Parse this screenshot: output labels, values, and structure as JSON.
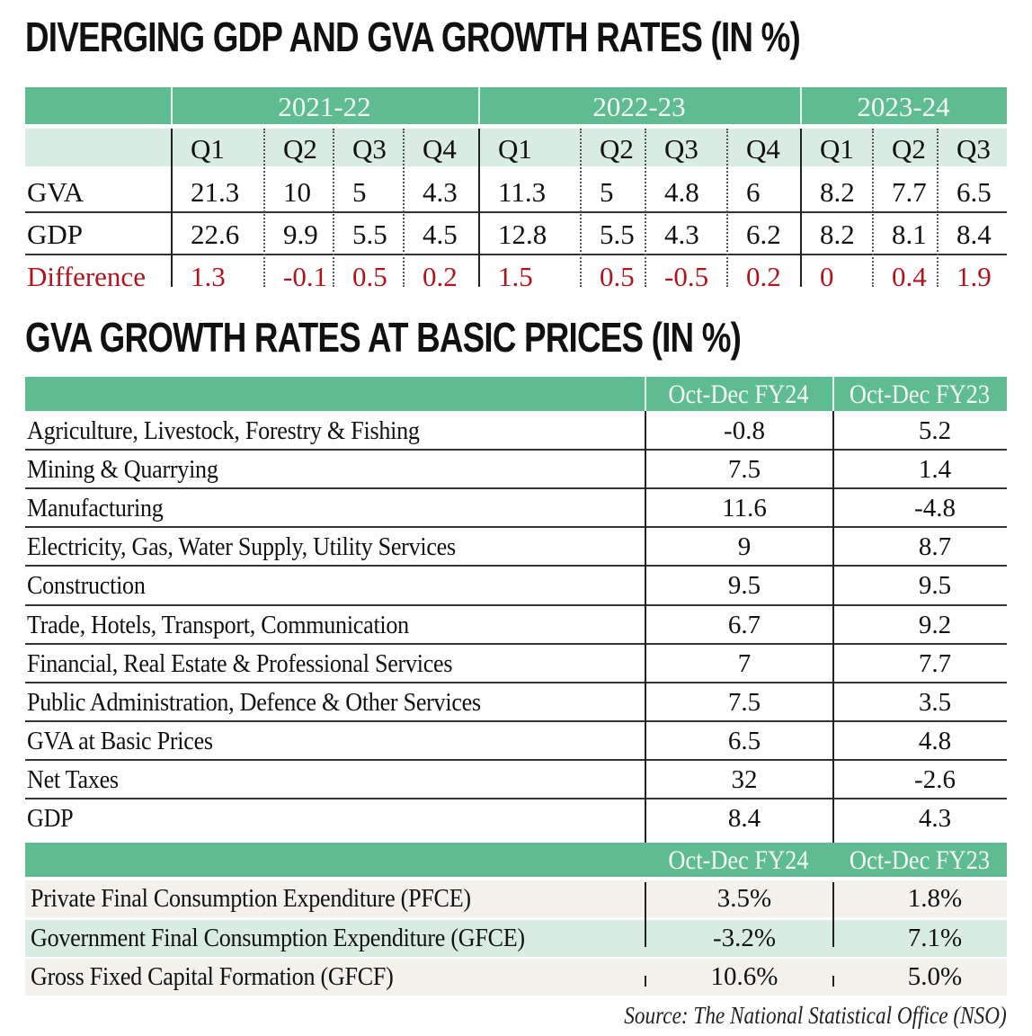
{
  "chart_data": [
    {
      "type": "table",
      "title": "DIVERGING GDP  AND GVA GROWTH RATES (IN %)",
      "column_groups": [
        {
          "label": "2021-22",
          "quarters": [
            "Q1",
            "Q2",
            "Q3",
            "Q4"
          ]
        },
        {
          "label": "2022-23",
          "quarters": [
            "Q1",
            "Q2",
            "Q3",
            "Q4"
          ]
        },
        {
          "label": "2023-24",
          "quarters": [
            "Q1",
            "Q2",
            "Q3"
          ]
        }
      ],
      "rows": [
        {
          "label": "GVA",
          "values": [
            "21.3",
            "10",
            "5",
            "4.3",
            "11.3",
            "5",
            "4.8",
            "6",
            "8.2",
            "7.7",
            "6.5"
          ]
        },
        {
          "label": "GDP",
          "values": [
            "22.6",
            "9.9",
            "5.5",
            "4.5",
            "12.8",
            "5.5",
            "4.3",
            "6.2",
            "8.2",
            "8.1",
            "8.4"
          ]
        },
        {
          "label": "Difference",
          "values": [
            "1.3",
            "-0.1",
            "0.5",
            "0.2",
            "1.5",
            "0.5",
            "-0.5",
            "0.2",
            "0",
            "0.4",
            "1.9"
          ],
          "color": "#b3141c"
        }
      ]
    },
    {
      "type": "table",
      "title": "GVA GROWTH RATES AT BASIC PRICES (IN %)",
      "columns": [
        "Oct-Dec FY24",
        "Oct-Dec FY23"
      ],
      "rows": [
        {
          "label": "Agriculture, Livestock, Forestry & Fishing",
          "values": [
            "-0.8",
            "5.2"
          ]
        },
        {
          "label": "Mining & Quarrying",
          "values": [
            "7.5",
            "1.4"
          ]
        },
        {
          "label": "Manufacturing",
          "values": [
            "11.6",
            "-4.8"
          ]
        },
        {
          "label": "Electricity, Gas, Water Supply, Utility Services",
          "values": [
            "9",
            "8.7"
          ]
        },
        {
          "label": "Construction",
          "values": [
            "9.5",
            "9.5"
          ]
        },
        {
          "label": "Trade, Hotels, Transport, Communication",
          "values": [
            "6.7",
            "9.2"
          ]
        },
        {
          "label": "Financial, Real Estate & Professional Services",
          "values": [
            "7",
            "7.7"
          ]
        },
        {
          "label": "Public Administration, Defence & Other Services",
          "values": [
            "7.5",
            "3.5"
          ]
        },
        {
          "label": "GVA at Basic Prices",
          "values": [
            "6.5",
            "4.8"
          ]
        },
        {
          "label": "Net Taxes",
          "values": [
            "32",
            "-2.6"
          ]
        },
        {
          "label": "GDP",
          "values": [
            "8.4",
            "4.3"
          ]
        }
      ]
    },
    {
      "type": "table",
      "title": "",
      "columns": [
        "Oct-Dec FY24",
        "Oct-Dec FY23"
      ],
      "rows": [
        {
          "label": "Private Final Consumption Expenditure (PFCE)",
          "values": [
            "3.5%",
            "1.8%"
          ]
        },
        {
          "label": "Government Final Consumption Expenditure (GFCE)",
          "values": [
            "-3.2%",
            "7.1%"
          ]
        },
        {
          "label": "Gross Fixed Capital Formation (GFCF)",
          "values": [
            "10.6%",
            "5.0%"
          ]
        }
      ]
    }
  ],
  "source": "Source: The National Statistical Office (NSO)",
  "colors": {
    "header_green": "#5fbb90",
    "subheader_green": "#d8ece1",
    "difference_red": "#b3141c",
    "band_beige": "#f3f1eb"
  }
}
